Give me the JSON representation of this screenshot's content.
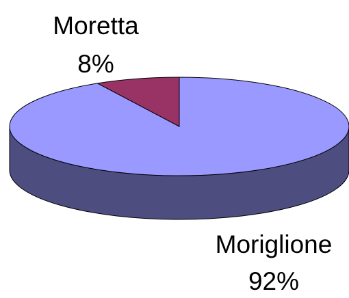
{
  "chart_data": {
    "type": "pie3d",
    "categories": [
      "Moretta",
      "Moriglione"
    ],
    "values": [
      8,
      92
    ],
    "value_labels": [
      "8%",
      "92%"
    ],
    "colors": [
      "#993366",
      "#9999ff"
    ]
  }
}
